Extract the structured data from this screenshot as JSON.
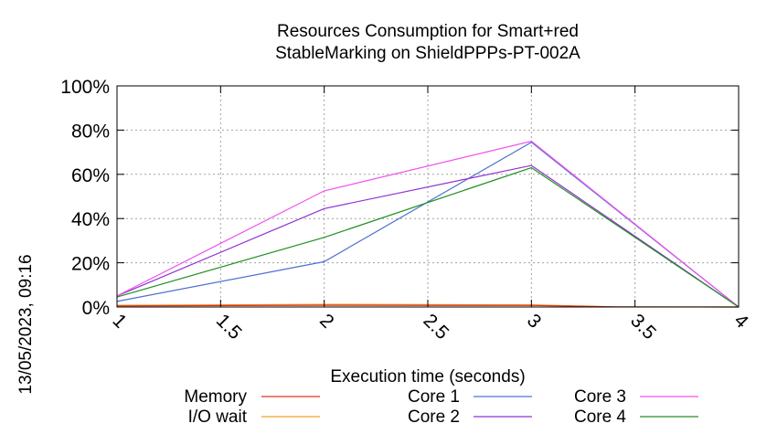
{
  "chart_data": {
    "type": "line",
    "title": [
      "Resources Consumption for Smart+red",
      "StableMarking on ShieldPPPs-PT-002A"
    ],
    "xlabel": "Execution time (seconds)",
    "ylabel": "",
    "side_label": "13/05/2023, 09:16",
    "xlim": [
      1,
      4
    ],
    "ylim": [
      0,
      100
    ],
    "x_ticks": [
      1,
      1.5,
      2,
      2.5,
      3,
      3.5,
      4
    ],
    "x_tick_labels": [
      "1",
      "1.5",
      "2",
      "2.5",
      "3",
      "3.5",
      "4"
    ],
    "y_ticks": [
      0,
      20,
      40,
      60,
      80,
      100
    ],
    "y_tick_labels": [
      "0%",
      "20%",
      "40%",
      "60%",
      "80%",
      "100%"
    ],
    "grid": true,
    "legend_position": "bottom",
    "series": [
      {
        "name": "Memory",
        "color": "#e03020",
        "x": [
          1,
          2,
          3,
          3.4,
          4
        ],
        "values": [
          0.5,
          0.8,
          0.7,
          0.1,
          0
        ]
      },
      {
        "name": "I/O wait",
        "color": "#f0a020",
        "x": [
          1,
          2,
          3,
          3.4,
          4
        ],
        "values": [
          0.8,
          1.2,
          1.0,
          0.1,
          0
        ]
      },
      {
        "name": "Core 1",
        "color": "#5070d0",
        "x": [
          1,
          2,
          3,
          4
        ],
        "values": [
          2.5,
          20.5,
          74.5,
          0
        ]
      },
      {
        "name": "Core 2",
        "color": "#9030d0",
        "x": [
          1,
          2,
          3,
          4
        ],
        "values": [
          5,
          44.5,
          64,
          0
        ]
      },
      {
        "name": "Core 3",
        "color": "#f050f0",
        "x": [
          1,
          2,
          3,
          4
        ],
        "values": [
          5,
          52.5,
          75,
          0
        ]
      },
      {
        "name": "Core 4",
        "color": "#209020",
        "x": [
          1,
          2,
          3,
          4
        ],
        "values": [
          4.5,
          31.5,
          63,
          0
        ]
      }
    ]
  }
}
